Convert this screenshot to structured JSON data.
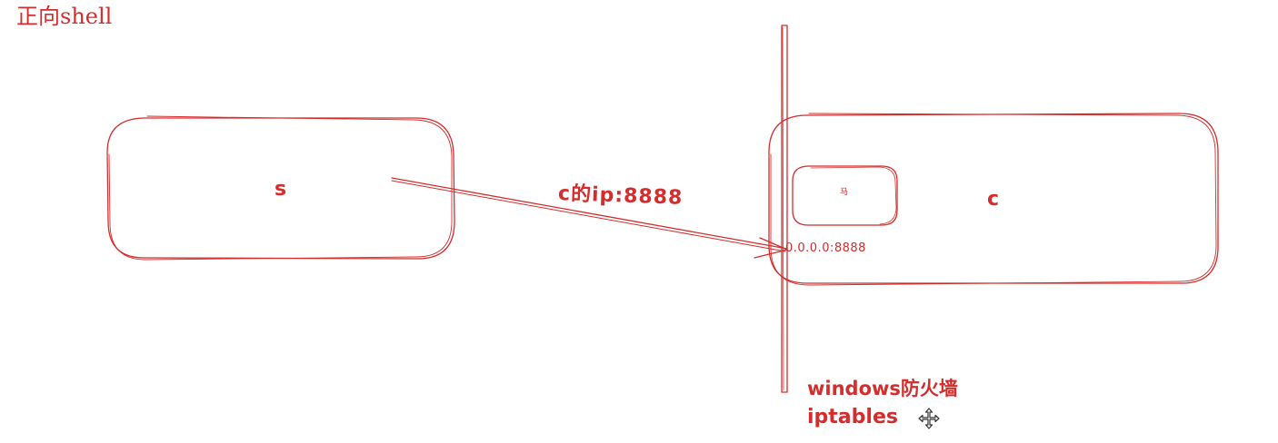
{
  "diagram": {
    "title": "正向shell",
    "nodes": {
      "s": "s",
      "c": "c",
      "inner": "马"
    },
    "edge_label": "c的ip:8888",
    "listen_address": "0.0.0.0:8888",
    "firewall_labels": [
      "windows防火墙",
      "iptables"
    ]
  },
  "colors": {
    "stroke": "#d42d2d",
    "cursor": "#333333",
    "background": "#ffffff"
  },
  "icons": {
    "cursor": "move-cursor-icon"
  }
}
